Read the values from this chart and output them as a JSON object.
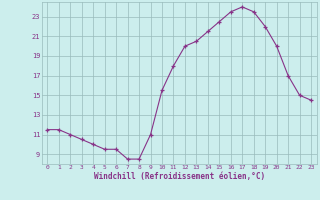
{
  "x": [
    0,
    1,
    2,
    3,
    4,
    5,
    6,
    7,
    8,
    9,
    10,
    11,
    12,
    13,
    14,
    15,
    16,
    17,
    18,
    19,
    20,
    21,
    22,
    23
  ],
  "y": [
    11.5,
    11.5,
    11.0,
    10.5,
    10.0,
    9.5,
    9.5,
    8.5,
    8.5,
    11.0,
    15.5,
    18.0,
    20.0,
    20.5,
    21.5,
    22.5,
    23.5,
    24.0,
    23.5,
    22.0,
    20.0,
    17.0,
    15.0,
    14.5
  ],
  "xlabel": "Windchill (Refroidissement éolien,°C)",
  "xlim": [
    -0.5,
    23.5
  ],
  "ylim": [
    8.0,
    24.5
  ],
  "yticks": [
    9,
    11,
    13,
    15,
    17,
    19,
    21,
    23
  ],
  "xticks": [
    0,
    1,
    2,
    3,
    4,
    5,
    6,
    7,
    8,
    9,
    10,
    11,
    12,
    13,
    14,
    15,
    16,
    17,
    18,
    19,
    20,
    21,
    22,
    23
  ],
  "line_color": "#883388",
  "marker": "+",
  "bg_color": "#cceeed",
  "grid_color": "#99bbbb",
  "tick_label_color": "#883388",
  "xlabel_color": "#883388"
}
